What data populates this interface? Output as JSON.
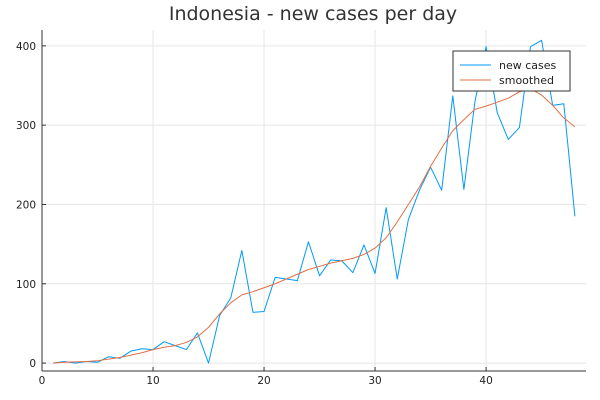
{
  "chart_data": {
    "type": "line",
    "title": "Indonesia - new cases per day",
    "xlabel": "",
    "ylabel": "",
    "xlim": [
      0,
      49
    ],
    "ylim": [
      -10,
      420
    ],
    "x_ticks": [
      0,
      10,
      20,
      30,
      40
    ],
    "y_ticks": [
      0,
      100,
      200,
      300,
      400
    ],
    "grid": true,
    "legend_position": "top-right",
    "x": [
      1,
      2,
      3,
      4,
      5,
      6,
      7,
      8,
      9,
      10,
      11,
      12,
      13,
      14,
      15,
      16,
      17,
      18,
      19,
      20,
      21,
      22,
      23,
      24,
      25,
      26,
      27,
      28,
      29,
      30,
      31,
      32,
      33,
      34,
      35,
      36,
      37,
      38,
      39,
      40,
      41,
      42,
      43,
      44,
      45,
      46,
      47,
      48
    ],
    "series": [
      {
        "name": "new cases",
        "color": "#009af9",
        "values": [
          0,
          2,
          0,
          2,
          1,
          8,
          6,
          15,
          18,
          17,
          27,
          22,
          17,
          38,
          0,
          60,
          82,
          142,
          64,
          65,
          108,
          106,
          104,
          153,
          110,
          130,
          129,
          114,
          149,
          113,
          196,
          106,
          181,
          218,
          247,
          218,
          337,
          219,
          330,
          399,
          316,
          282,
          297,
          399,
          407,
          325,
          327,
          185
        ]
      },
      {
        "name": "smoothed",
        "color": "#e26f46",
        "values": [
          0,
          1,
          1.5,
          2,
          3,
          5,
          7,
          10,
          13,
          17,
          20,
          22,
          26,
          33,
          45,
          62,
          76,
          86,
          90,
          95,
          100,
          106,
          112,
          118,
          122,
          126,
          129,
          132,
          137,
          145,
          158,
          178,
          200,
          222,
          248,
          271,
          293,
          307,
          320,
          324,
          329,
          334,
          342,
          346,
          338,
          325,
          309,
          298
        ]
      }
    ]
  }
}
